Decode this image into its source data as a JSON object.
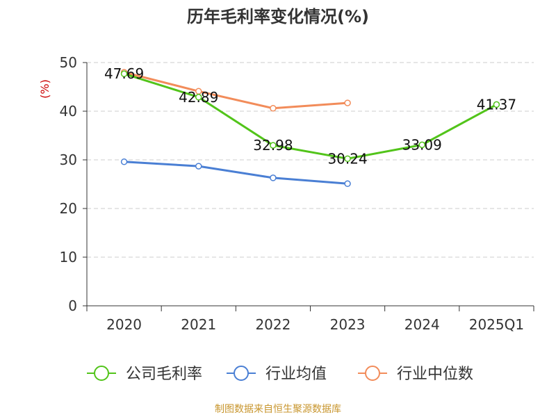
{
  "chart_data": {
    "type": "line",
    "title": "历年毛利率变化情况(%)",
    "ylabel": "(%)",
    "xlabel": "",
    "categories": [
      "2020",
      "2021",
      "2022",
      "2023",
      "2024",
      "2025Q1"
    ],
    "ylim": [
      0,
      50
    ],
    "yticks": [
      0,
      10,
      20,
      30,
      40,
      50
    ],
    "grid": true,
    "legend_position": "bottom",
    "series": [
      {
        "name": "公司毛利率",
        "color": "#52c41a",
        "values": [
          47.69,
          42.89,
          32.98,
          30.24,
          33.09,
          41.37
        ],
        "labels": [
          "47.69",
          "42.89",
          "32.98",
          "30.24",
          "33.09",
          "41.37"
        ]
      },
      {
        "name": "行业均值",
        "color": "#4a7fd4",
        "values": [
          29.6,
          28.7,
          26.3,
          25.1,
          null,
          null
        ]
      },
      {
        "name": "行业中位数",
        "color": "#f28c5a",
        "values": [
          48.0,
          44.1,
          40.6,
          41.7,
          null,
          null
        ]
      }
    ],
    "source_note": "制图数据来自恒生聚源数据库"
  }
}
